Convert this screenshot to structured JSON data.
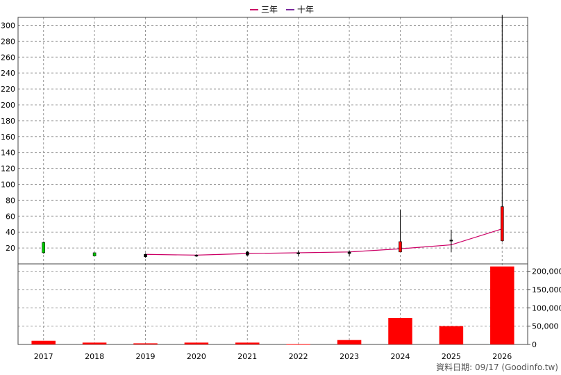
{
  "legend": [
    {
      "label": "三年",
      "color": "#cc0066"
    },
    {
      "label": "十年",
      "color": "#7b2a9c"
    }
  ],
  "source_note": "資料日期: 09/17  (Goodinfo.tw)",
  "chart_data": [
    {
      "type": "candlestick",
      "categories": [
        "2017",
        "2018",
        "2019",
        "2020",
        "2021",
        "2022",
        "2023",
        "2024",
        "2025",
        "2026"
      ],
      "ylim": [
        0,
        310
      ],
      "yticks": [
        20,
        40,
        60,
        80,
        100,
        120,
        140,
        160,
        180,
        200,
        220,
        240,
        260,
        280,
        300
      ],
      "grid": true,
      "candles": [
        {
          "x": "2017",
          "open": 14,
          "close": 27,
          "high": 28,
          "low": 13,
          "color": "#00cc00"
        },
        {
          "x": "2018",
          "open": 10,
          "close": 14,
          "high": 14,
          "low": 10,
          "color": "#00cc00"
        },
        {
          "x": "2019",
          "open": 12,
          "close": 9,
          "high": 13,
          "low": 8,
          "color": "#000000"
        },
        {
          "x": "2020",
          "open": 11,
          "close": 10,
          "high": 12,
          "low": 9,
          "color": "#000000"
        },
        {
          "x": "2021",
          "open": 15,
          "close": 11,
          "high": 16,
          "low": 10,
          "color": "#000000"
        },
        {
          "x": "2022",
          "open": 14,
          "close": 13,
          "high": 17,
          "low": 10,
          "color": "#000000"
        },
        {
          "x": "2023",
          "open": 15,
          "close": 13,
          "high": 17,
          "low": 10,
          "color": "#000000"
        },
        {
          "x": "2024",
          "open": 28,
          "close": 15,
          "high": 68,
          "low": 15,
          "color": "#ff0000"
        },
        {
          "x": "2025",
          "open": 30,
          "close": 29,
          "high": 43,
          "low": 15,
          "color": "#000000"
        },
        {
          "x": "2026",
          "open": 72,
          "close": 29,
          "high": 313,
          "low": 28,
          "color": "#ff0000"
        }
      ],
      "series": [
        {
          "name": "三年",
          "color": "#cc0066",
          "points": [
            [
              "2019",
              12
            ],
            [
              "2020",
              11
            ],
            [
              "2021",
              13
            ],
            [
              "2022",
              14
            ],
            [
              "2023",
              15
            ],
            [
              "2024",
              19
            ],
            [
              "2025",
              24
            ],
            [
              "2026",
              44
            ]
          ]
        }
      ]
    },
    {
      "type": "bar",
      "categories": [
        "2017",
        "2018",
        "2019",
        "2020",
        "2021",
        "2022",
        "2023",
        "2024",
        "2025",
        "2026"
      ],
      "values": [
        10000,
        5000,
        3000,
        5000,
        5000,
        1000,
        12000,
        72000,
        50000,
        213000
      ],
      "ylim": [
        0,
        220000
      ],
      "yticks": [
        0,
        50000,
        100000,
        150000,
        200000
      ],
      "ytick_labels": [
        "0",
        "50,000",
        "100,000",
        "150,000",
        "200,000"
      ],
      "color": "#ff0000",
      "grid": true
    }
  ]
}
